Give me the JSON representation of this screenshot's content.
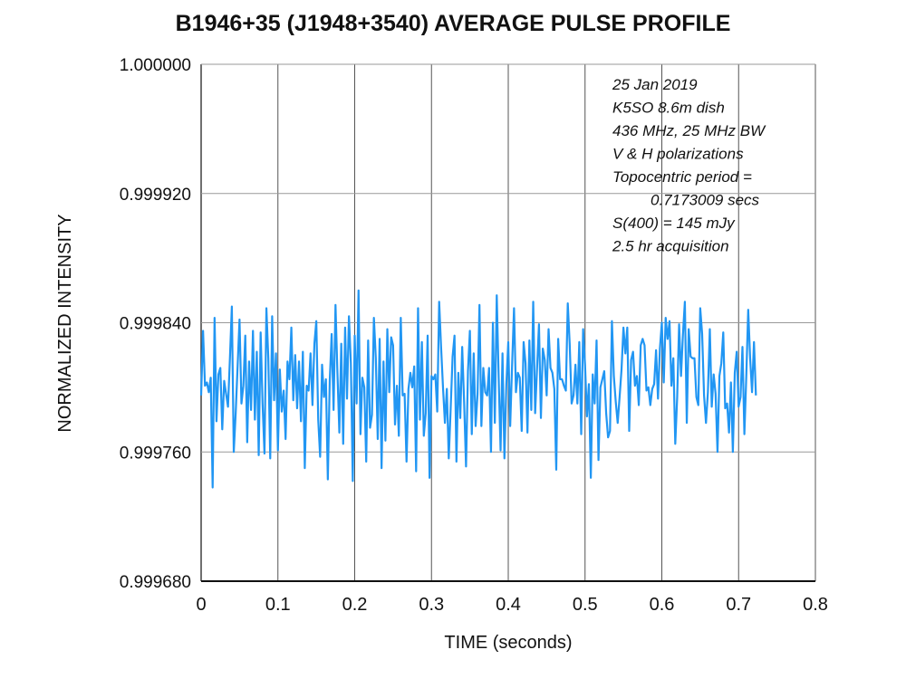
{
  "chart_data": {
    "type": "line",
    "title": "B1946+35 (J1948+3540) AVERAGE PULSE PROFILE",
    "xlabel": "TIME (seconds)",
    "ylabel": "NORMALIZED INTENSITY",
    "xlim": [
      0,
      0.8
    ],
    "ylim": [
      0.99968,
      1.0
    ],
    "x_ticks": [
      "0",
      "0.1",
      "0.2",
      "0.3",
      "0.4",
      "0.5",
      "0.6",
      "0.7",
      "0.8"
    ],
    "y_ticks": [
      "0.999680",
      "0.999760",
      "0.999840",
      "0.999920",
      "1.000000"
    ],
    "grid": true,
    "line_color": "#2196F3",
    "annotations": [
      "25 Jan 2019",
      "K5SO 8.6m dish",
      "436 MHz, 25 MHz BW",
      "V & H polarizations",
      "Topocentric period =",
      "0.7173009 secs",
      "S(400) = 145 mJy",
      "2.5 hr acquisition"
    ],
    "series": [
      {
        "x_start": 0,
        "x_step": 0.0025,
        "values": [
          0.999795,
          0.999835,
          0.999801,
          0.999803,
          0.999797,
          0.999806,
          0.999738,
          0.999843,
          0.999779,
          0.999808,
          0.999812,
          0.999774,
          0.999804,
          0.999796,
          0.999788,
          0.999818,
          0.99985,
          0.99976,
          0.999784,
          0.999813,
          0.999842,
          0.99979,
          0.999801,
          0.999832,
          0.999766,
          0.999816,
          0.999786,
          0.999835,
          0.99978,
          0.999822,
          0.999758,
          0.999834,
          0.99979,
          0.999759,
          0.999849,
          0.999818,
          0.999756,
          0.999844,
          0.999792,
          0.999821,
          0.999761,
          0.999811,
          0.999785,
          0.999798,
          0.999768,
          0.999816,
          0.999805,
          0.999837,
          0.999792,
          0.99982,
          0.999787,
          0.999816,
          0.999779,
          0.999822,
          0.99975,
          0.999801,
          0.999798,
          0.999821,
          0.999789,
          0.999827,
          0.999841,
          0.99978,
          0.999757,
          0.999814,
          0.999794,
          0.999805,
          0.999743,
          0.999804,
          0.999833,
          0.999786,
          0.999851,
          0.999809,
          0.999772,
          0.999827,
          0.999765,
          0.999837,
          0.999793,
          0.999844,
          0.999815,
          0.999742,
          0.999832,
          0.99979,
          0.99986,
          0.999771,
          0.999806,
          0.9998,
          0.999754,
          0.999829,
          0.999775,
          0.999783,
          0.999843,
          0.999818,
          0.999768,
          0.99983,
          0.99975,
          0.999816,
          0.999767,
          0.999836,
          0.999797,
          0.999831,
          0.999826,
          0.999777,
          0.999801,
          0.99977,
          0.999843,
          0.999795,
          0.999796,
          0.999754,
          0.999799,
          0.999809,
          0.9998,
          0.999813,
          0.999748,
          0.999849,
          0.99978,
          0.999828,
          0.99977,
          0.999784,
          0.999832,
          0.999744,
          0.999807,
          0.999805,
          0.999808,
          0.999785,
          0.999853,
          0.999825,
          0.9998,
          0.999778,
          0.999799,
          0.999756,
          0.999787,
          0.999819,
          0.999832,
          0.999754,
          0.999809,
          0.999781,
          0.999825,
          0.999791,
          0.999751,
          0.99981,
          0.999835,
          0.999771,
          0.999821,
          0.999776,
          0.999796,
          0.999851,
          0.999776,
          0.999812,
          0.999797,
          0.999795,
          0.999812,
          0.99976,
          0.99984,
          0.999778,
          0.999857,
          0.999806,
          0.999761,
          0.999821,
          0.999756,
          0.999802,
          0.999828,
          0.999776,
          0.999814,
          0.999849,
          0.999797,
          0.999809,
          0.999806,
          0.999773,
          0.999828,
          0.999815,
          0.999772,
          0.999829,
          0.999786,
          0.999853,
          0.999784,
          0.999812,
          0.999839,
          0.999781,
          0.999824,
          0.999817,
          0.999795,
          0.999836,
          0.999812,
          0.999809,
          0.999799,
          0.999749,
          0.99983,
          0.999805,
          0.999805,
          0.999801,
          0.999798,
          0.999852,
          0.999827,
          0.99979,
          0.999795,
          0.999814,
          0.99979,
          0.999828,
          0.999771,
          0.999836,
          0.999814,
          0.999782,
          0.999802,
          0.999744,
          0.999808,
          0.99979,
          0.999829,
          0.999755,
          0.9998,
          0.999805,
          0.99981,
          0.999784,
          0.999769,
          0.999773,
          0.999841,
          0.999807,
          0.999791,
          0.999778,
          0.999794,
          0.999811,
          0.999837,
          0.999821,
          0.999837,
          0.999773,
          0.999817,
          0.999822,
          0.999801,
          0.999807,
          0.999789,
          0.999826,
          0.99983,
          0.999826,
          0.999798,
          0.9998,
          0.999789,
          0.999799,
          0.999802,
          0.999823,
          0.999793,
          0.999824,
          0.99984,
          0.999803,
          0.999843,
          0.99983,
          0.999841,
          0.999801,
          0.999818,
          0.999765,
          0.999794,
          0.999839,
          0.999807,
          0.999833,
          0.999853,
          0.999778,
          0.999836,
          0.999819,
          0.999818,
          0.999818,
          0.999794,
          0.999789,
          0.999849,
          0.999833,
          0.999795,
          0.999778,
          0.999797,
          0.999836,
          0.999788,
          0.999808,
          0.999796,
          0.99976,
          0.999807,
          0.999815,
          0.999834,
          0.999787,
          0.99979,
          0.999772,
          0.999803,
          0.99976,
          0.999809,
          0.999822,
          0.999788,
          0.999794,
          0.999825,
          0.999771,
          0.999807,
          0.999848,
          0.999818,
          0.999797,
          0.999828,
          0.999795
        ]
      }
    ]
  }
}
